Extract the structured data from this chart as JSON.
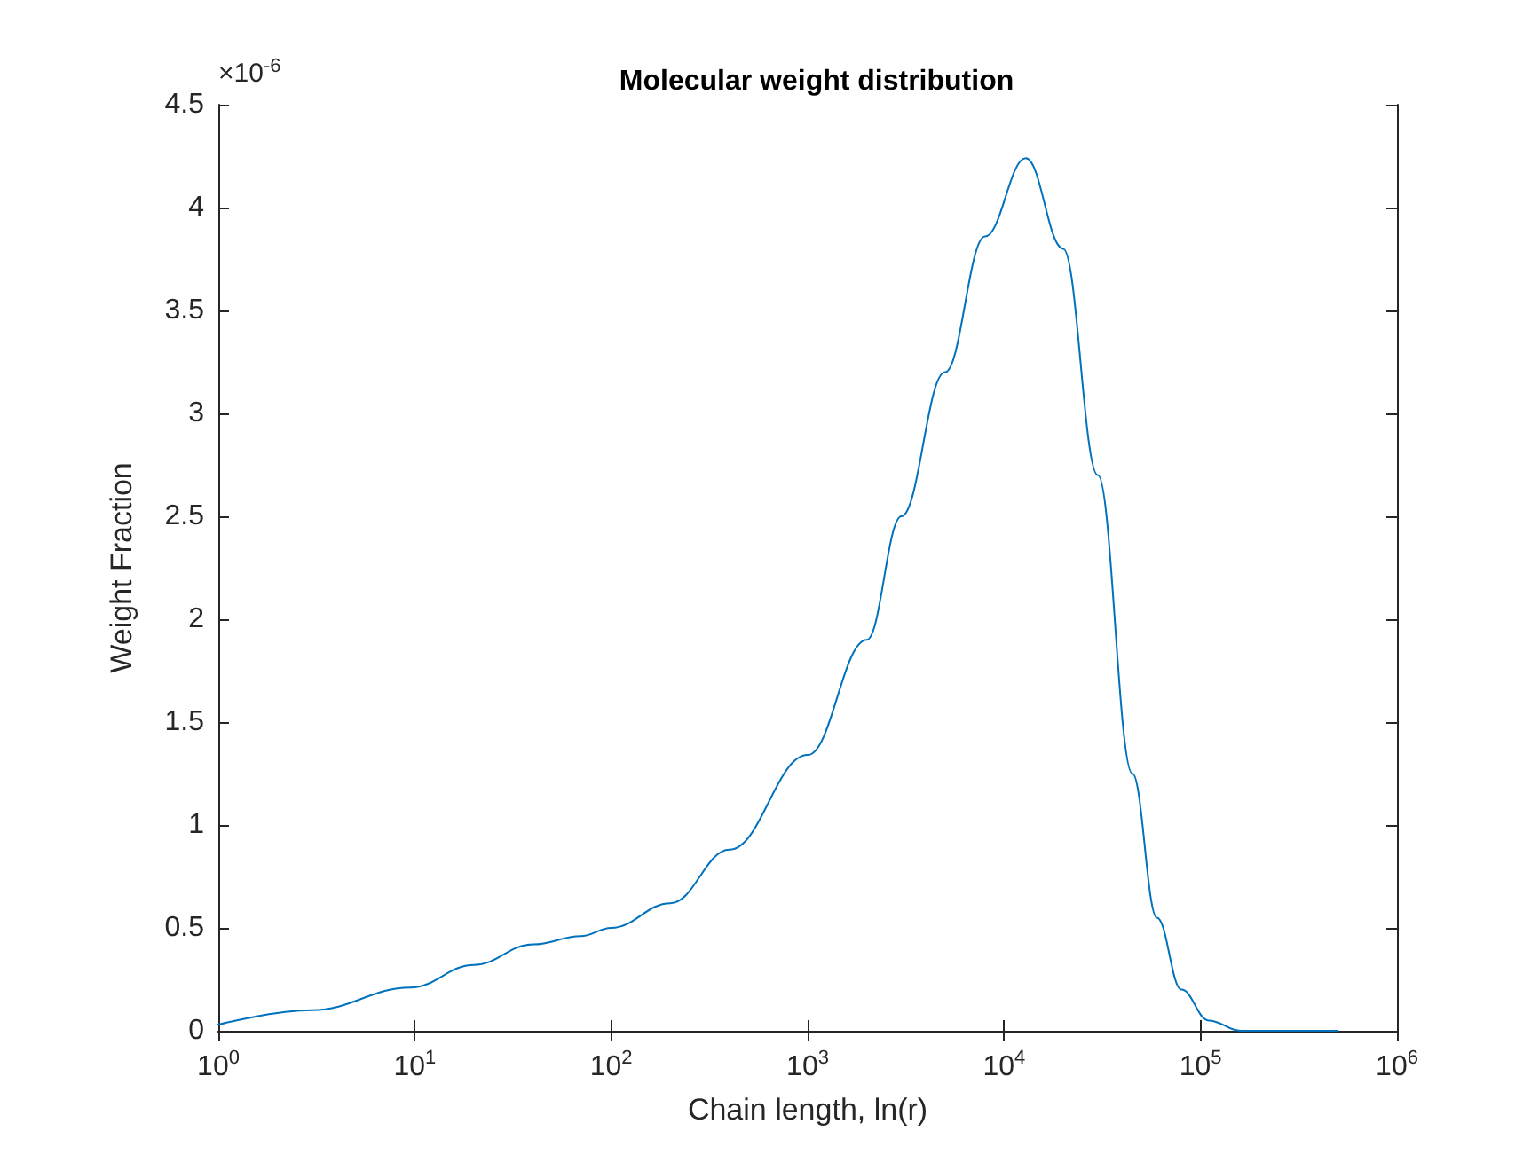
{
  "chart_data": {
    "type": "line",
    "title": "Molecular weight distribution",
    "xlabel": "Chain length, ln(r)",
    "ylabel": "Weight Fraction",
    "annotations": [
      "×10$^{-6}$"
    ],
    "log": "x",
    "grid": false,
    "marker": "none",
    "line_style": "solid",
    "xlim": [
      1,
      1000000
    ],
    "xticks": [
      {
        "value": 1,
        "label": "10$^{0}$"
      },
      {
        "value": 10,
        "label": "10$^{1}$"
      },
      {
        "value": 100,
        "label": "10$^{2}$"
      },
      {
        "value": 1000,
        "label": "10$^{3}$"
      },
      {
        "value": 10000,
        "label": "10$^{4}$"
      },
      {
        "value": 100000,
        "label": "10$^{5}$"
      },
      {
        "value": 1000000,
        "label": "10$^{6}$"
      }
    ],
    "ylim": [
      0,
      4.5
    ],
    "yticks": [
      0,
      0.5,
      1,
      1.5,
      2,
      2.5,
      3,
      3.5,
      4,
      4.5
    ],
    "series": [
      {
        "color": "#0072bd",
        "x": [
          1,
          3,
          9.5,
          20,
          40,
          70,
          100,
          200,
          400,
          1000,
          2000,
          3000,
          5000,
          8000,
          12900,
          20000,
          30000,
          45000,
          60000,
          80000,
          110000,
          160000,
          500000
        ],
        "values": [
          0.03,
          0.1,
          0.21,
          0.32,
          0.42,
          0.46,
          0.5,
          0.62,
          0.88,
          1.34,
          1.9,
          2.5,
          3.2,
          3.86,
          4.24,
          3.8,
          2.7,
          1.25,
          0.55,
          0.2,
          0.05,
          0,
          0
        ]
      }
    ]
  }
}
